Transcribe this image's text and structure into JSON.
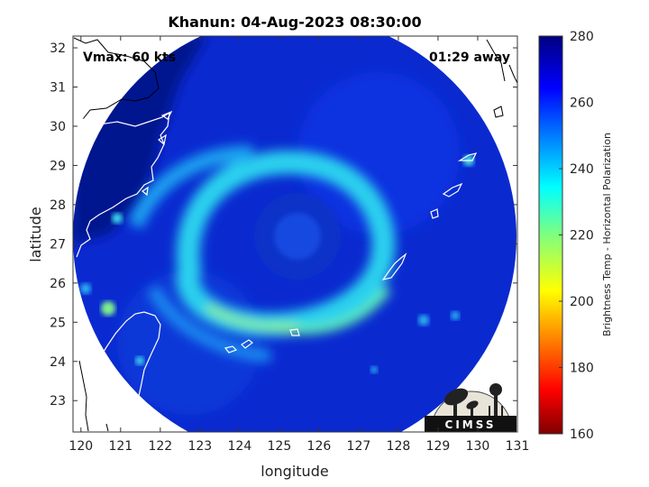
{
  "title": "Khanun: 04-Aug-2023 08:30:00",
  "overlay": {
    "vmax": "Vmax: 60 kts",
    "time_away": "01:29 away"
  },
  "axes": {
    "xlabel": "longitude",
    "ylabel": "latitude",
    "xticks": [
      120,
      121,
      122,
      123,
      124,
      125,
      126,
      127,
      128,
      129,
      130,
      131
    ],
    "yticks": [
      23,
      24,
      25,
      26,
      27,
      28,
      29,
      30,
      31,
      32
    ],
    "xlim": [
      119.8,
      131
    ],
    "ylim": [
      22.2,
      32.3
    ]
  },
  "colorbar": {
    "label": "Brightness Temp - Horizontal Polarization",
    "ticks": [
      160,
      180,
      200,
      220,
      240,
      260,
      280
    ],
    "range": [
      160,
      280
    ],
    "colormap": "jet"
  },
  "storm": {
    "center_lon": 125.8,
    "center_lat": 26.9,
    "swath_radius_deg": 5.5
  },
  "logo": {
    "text": "CIMSS"
  },
  "colors": {
    "background_sea": "#0a2ad0",
    "outer_cold": "#00138f",
    "coastline": "#ffffff",
    "land_outline": "#000000"
  }
}
